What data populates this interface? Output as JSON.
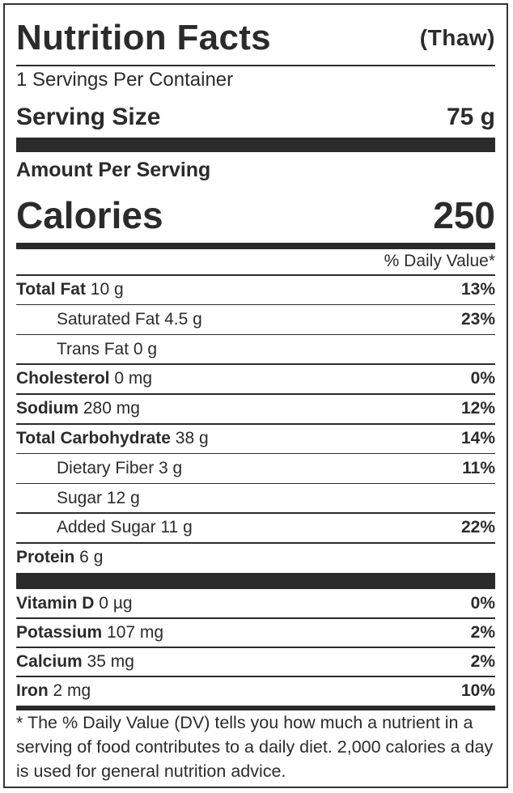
{
  "header": {
    "title": "Nutrition Facts",
    "subtitle": "(Thaw)"
  },
  "servings": "1 Servings Per Container",
  "serving_size": {
    "label": "Serving Size",
    "value": "75 g"
  },
  "amount_per_serving": "Amount Per Serving",
  "calories": {
    "label": "Calories",
    "value": "250"
  },
  "dv_header": "% Daily Value*",
  "nutrients": [
    {
      "bold": "Total Fat",
      "rest": " 10 g",
      "dv": "13%"
    },
    {
      "bold": "",
      "rest": "Saturated Fat 4.5 g",
      "dv": "23%"
    },
    {
      "bold": "",
      "rest": "Trans Fat 0 g",
      "dv": ""
    },
    {
      "bold": "Cholesterol",
      "rest": " 0 mg",
      "dv": "0%"
    },
    {
      "bold": "Sodium",
      "rest": " 280 mg",
      "dv": "12%"
    },
    {
      "bold": "Total Carbohydrate",
      "rest": " 38 g",
      "dv": "14%"
    },
    {
      "bold": "",
      "rest": "Dietary Fiber 3 g",
      "dv": "11%"
    },
    {
      "bold": "",
      "rest": "Sugar 12 g",
      "dv": ""
    },
    {
      "bold": "",
      "rest": "Added Sugar 11 g",
      "dv": "22%"
    },
    {
      "bold": "Protein",
      "rest": " 6 g",
      "dv": ""
    }
  ],
  "minerals": [
    {
      "bold": "Vitamin D",
      "rest": " 0 µg",
      "dv": "0%"
    },
    {
      "bold": "Potassium",
      "rest": " 107 mg",
      "dv": "2%"
    },
    {
      "bold": "Calcium",
      "rest": " 35 mg",
      "dv": "2%"
    },
    {
      "bold": "Iron",
      "rest": " 2 mg",
      "dv": "10%"
    }
  ],
  "footnote": "* The % Daily Value (DV) tells you how much a nutrient in a serving of food contributes to a daily diet. 2,000 calories a day is used for general nutrition advice."
}
